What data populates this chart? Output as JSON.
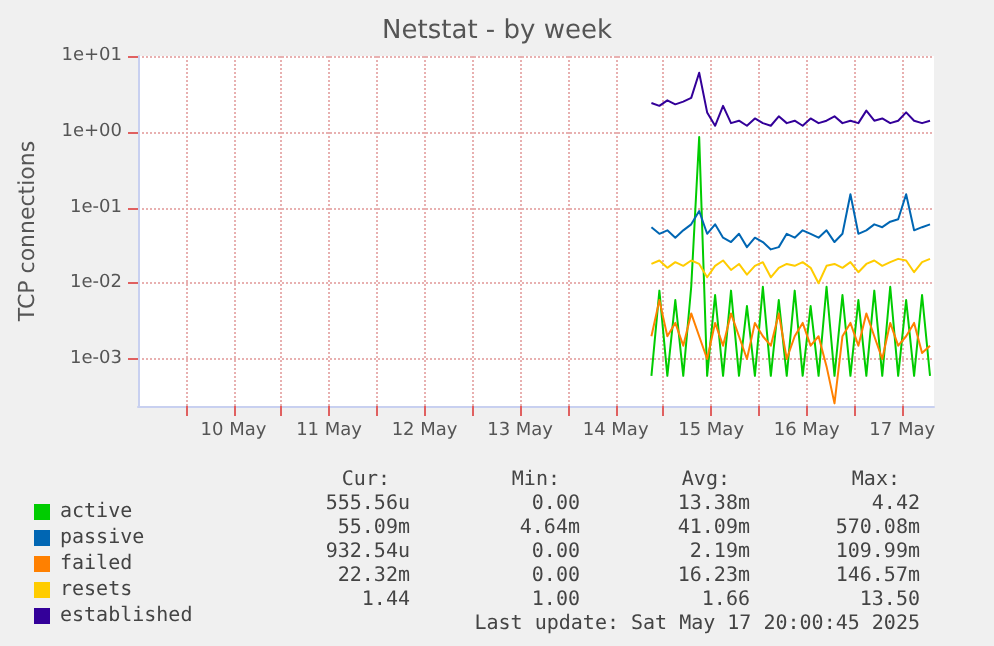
{
  "chart_data": {
    "type": "line",
    "title": "Netstat - by week",
    "ylabel": "TCP connections",
    "log": "y",
    "grid": true,
    "legend": "bottom",
    "marker": "none",
    "line_style": "solid",
    "xlim": [
      "2025-05-09T12:00",
      "2025-05-17T20:00"
    ],
    "xticks": [
      {
        "value": "2025-05-10T00:00",
        "label": null
      },
      {
        "value": "2025-05-10T12:00",
        "label": "10 May"
      },
      {
        "value": "2025-05-11T00:00",
        "label": null
      },
      {
        "value": "2025-05-11T12:00",
        "label": "11 May"
      },
      {
        "value": "2025-05-12T00:00",
        "label": null
      },
      {
        "value": "2025-05-12T12:00",
        "label": "12 May"
      },
      {
        "value": "2025-05-13T00:00",
        "label": null
      },
      {
        "value": "2025-05-13T12:00",
        "label": "13 May"
      },
      {
        "value": "2025-05-14T00:00",
        "label": null
      },
      {
        "value": "2025-05-14T12:00",
        "label": "14 May"
      },
      {
        "value": "2025-05-15T00:00",
        "label": null
      },
      {
        "value": "2025-05-15T12:00",
        "label": "15 May"
      },
      {
        "value": "2025-05-16T00:00",
        "label": null
      },
      {
        "value": "2025-05-16T12:00",
        "label": "16 May"
      },
      {
        "value": "2025-05-17T00:00",
        "label": null
      },
      {
        "value": "2025-05-17T12:00",
        "label": "17 May"
      }
    ],
    "ylim": [
      0.00024,
      10
    ],
    "yticks": [
      {
        "value": 0.001,
        "label": "1e-03"
      },
      {
        "value": 0.01,
        "label": "1e-02"
      },
      {
        "value": 0.1,
        "label": "1e-01"
      },
      {
        "value": 1,
        "label": "1e+00"
      },
      {
        "value": 10,
        "label": "1e+01"
      }
    ],
    "x": [
      "2025-05-14T21:00",
      "2025-05-14T23:00",
      "2025-05-15T01:00",
      "2025-05-15T03:00",
      "2025-05-15T05:00",
      "2025-05-15T07:00",
      "2025-05-15T09:00",
      "2025-05-15T11:00",
      "2025-05-15T13:00",
      "2025-05-15T15:00",
      "2025-05-15T17:00",
      "2025-05-15T19:00",
      "2025-05-15T21:00",
      "2025-05-15T23:00",
      "2025-05-16T01:00",
      "2025-05-16T03:00",
      "2025-05-16T05:00",
      "2025-05-16T07:00",
      "2025-05-16T09:00",
      "2025-05-16T11:00",
      "2025-05-16T13:00",
      "2025-05-16T15:00",
      "2025-05-16T17:00",
      "2025-05-16T19:00",
      "2025-05-16T21:00",
      "2025-05-16T23:00",
      "2025-05-17T01:00",
      "2025-05-17T03:00",
      "2025-05-17T05:00",
      "2025-05-17T07:00",
      "2025-05-17T09:00",
      "2025-05-17T11:00",
      "2025-05-17T13:00",
      "2025-05-17T15:00",
      "2025-05-17T17:00",
      "2025-05-17T19:00"
    ],
    "series": [
      {
        "name": "active",
        "color": "#00cc00",
        "values": [
          0.0006,
          0.008,
          0.0006,
          0.006,
          0.0006,
          0.009,
          0.85,
          0.0006,
          0.007,
          0.0006,
          0.008,
          0.0006,
          0.005,
          0.0006,
          0.009,
          0.0006,
          0.006,
          0.0006,
          0.008,
          0.0006,
          0.005,
          0.0006,
          0.009,
          0.0006,
          0.007,
          0.0006,
          0.006,
          0.0006,
          0.008,
          0.0006,
          0.009,
          0.0006,
          0.006,
          0.0006,
          0.007,
          0.0006
        ]
      },
      {
        "name": "passive",
        "color": "#0066b3",
        "values": [
          0.055,
          0.045,
          0.05,
          0.04,
          0.05,
          0.06,
          0.09,
          0.045,
          0.06,
          0.04,
          0.035,
          0.045,
          0.03,
          0.04,
          0.035,
          0.028,
          0.03,
          0.045,
          0.04,
          0.05,
          0.045,
          0.04,
          0.05,
          0.035,
          0.045,
          0.15,
          0.045,
          0.05,
          0.06,
          0.055,
          0.065,
          0.07,
          0.15,
          0.05,
          0.055,
          0.06
        ]
      },
      {
        "name": "failed",
        "color": "#ff8000",
        "values": [
          0.002,
          0.006,
          0.002,
          0.003,
          0.0015,
          0.004,
          0.002,
          0.001,
          0.003,
          0.0015,
          0.004,
          0.002,
          0.001,
          0.003,
          0.002,
          0.0015,
          0.004,
          0.001,
          0.002,
          0.003,
          0.0015,
          0.002,
          0.0008,
          0.00026,
          0.002,
          0.003,
          0.0015,
          0.004,
          0.002,
          0.001,
          0.003,
          0.0015,
          0.002,
          0.003,
          0.0012,
          0.0015
        ]
      },
      {
        "name": "resets",
        "color": "#ffcc00",
        "values": [
          0.018,
          0.02,
          0.016,
          0.019,
          0.017,
          0.02,
          0.018,
          0.012,
          0.017,
          0.02,
          0.015,
          0.018,
          0.013,
          0.017,
          0.019,
          0.012,
          0.016,
          0.018,
          0.017,
          0.019,
          0.016,
          0.01,
          0.017,
          0.018,
          0.016,
          0.019,
          0.014,
          0.018,
          0.02,
          0.017,
          0.019,
          0.021,
          0.02,
          0.014,
          0.019,
          0.021
        ]
      },
      {
        "name": "established",
        "color": "#330099",
        "values": [
          2.4,
          2.2,
          2.6,
          2.3,
          2.5,
          2.8,
          6.0,
          1.8,
          1.2,
          2.2,
          1.3,
          1.4,
          1.2,
          1.5,
          1.3,
          1.2,
          1.6,
          1.3,
          1.4,
          1.2,
          1.5,
          1.3,
          1.4,
          1.6,
          1.3,
          1.4,
          1.3,
          1.9,
          1.4,
          1.5,
          1.3,
          1.4,
          1.8,
          1.4,
          1.3,
          1.4
        ]
      }
    ],
    "annotations": [
      "Cur:",
      "Min:",
      "Avg:",
      "Max:",
      "555.56u",
      "0.00",
      "13.38m",
      "4.42",
      "55.09m",
      "4.64m",
      "41.09m",
      "570.08m",
      "932.54u",
      "0.00",
      "2.19m",
      "109.99m",
      "22.32m",
      "0.00",
      "16.23m",
      "146.57m",
      "1.44",
      "1.00",
      "1.66",
      "13.50",
      "Last update: Sat May 17 20:00:45 2025"
    ]
  }
}
